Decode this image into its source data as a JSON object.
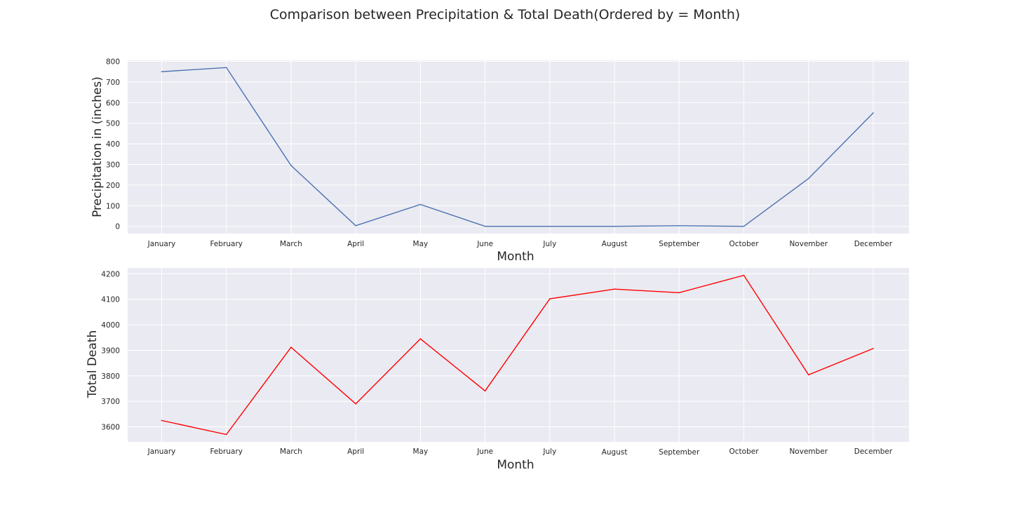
{
  "figure_title": "Comparison between Precipitation & Total Death(Ordered by = Month)",
  "chart_data": [
    {
      "type": "line",
      "xlabel": "Month",
      "ylabel": "Precipitation in (inches)",
      "categories": [
        "January",
        "February",
        "March",
        "April",
        "May",
        "June",
        "July",
        "August",
        "September",
        "October",
        "November",
        "December"
      ],
      "series": [
        {
          "values": [
            750,
            770,
            295,
            3,
            106,
            0,
            0,
            0,
            3,
            0,
            232,
            550
          ],
          "color": "#4c72b0"
        }
      ],
      "ylim": [
        -35,
        805
      ],
      "yticks": [
        0,
        100,
        200,
        300,
        400,
        500,
        600,
        700,
        800
      ],
      "grid": true
    },
    {
      "type": "line",
      "xlabel": "Month",
      "ylabel": "Total Death",
      "categories": [
        "January",
        "February",
        "March",
        "April",
        "May",
        "June",
        "July",
        "August",
        "September",
        "October",
        "November",
        "December"
      ],
      "series": [
        {
          "values": [
            3625,
            3570,
            3912,
            3690,
            3945,
            3741,
            4102,
            4140,
            4126,
            4194,
            3804,
            3907
          ],
          "color": "#ff0000"
        }
      ],
      "ylim": [
        3541,
        4223
      ],
      "yticks": [
        3600,
        3700,
        3800,
        3900,
        4000,
        4100,
        4200
      ],
      "grid": true
    }
  ]
}
